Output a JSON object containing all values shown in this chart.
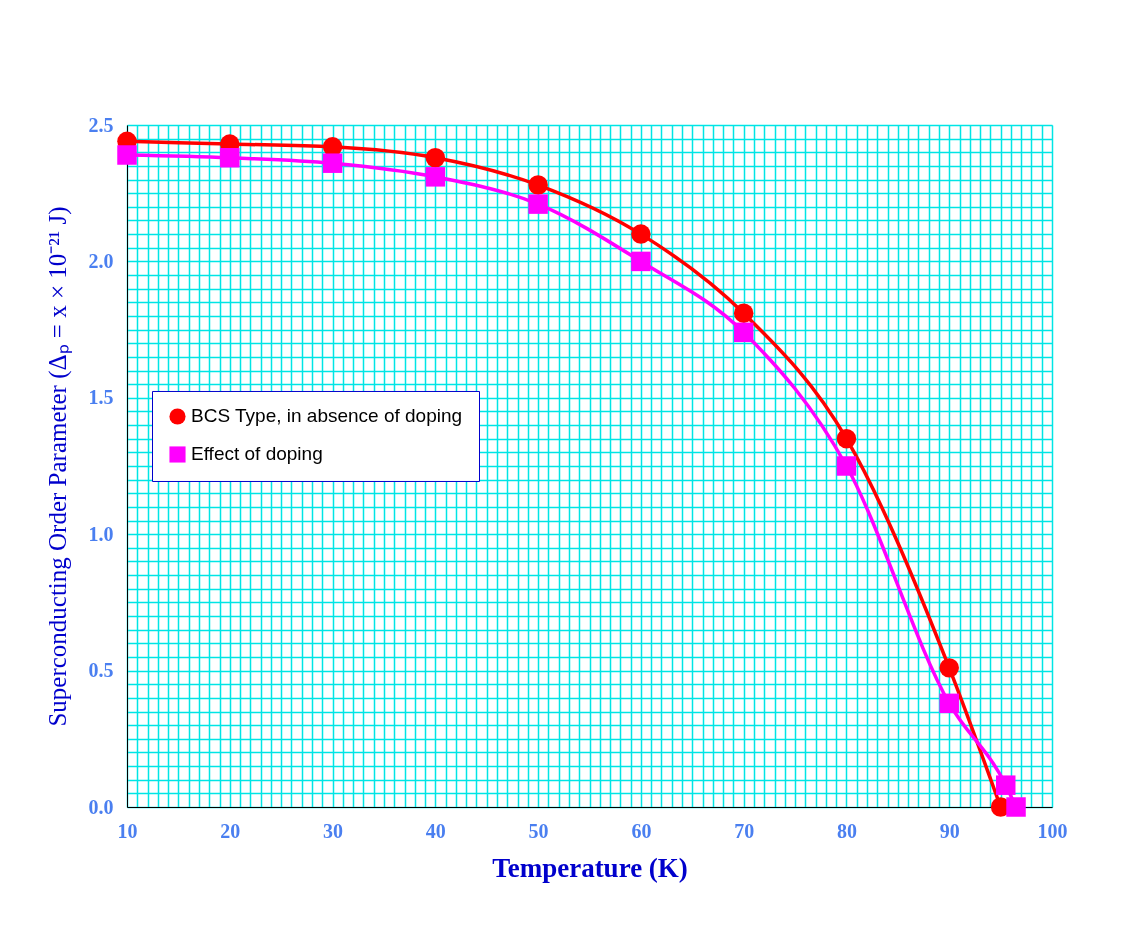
{
  "chart_data": {
    "type": "line",
    "xlabel": "Temperature (K)",
    "ylabel": "Superconducting Order Parameter (Δₚ = x × 10⁻²¹ J)",
    "xlim": [
      10,
      100
    ],
    "xticks": [
      10,
      20,
      30,
      40,
      50,
      60,
      70,
      80,
      90,
      100
    ],
    "ylim": [
      0,
      2.5
    ],
    "yticks": [
      {
        "value": 0,
        "label": "0.0"
      },
      0.5,
      {
        "value": 1,
        "label": "1.0"
      },
      1.5,
      {
        "value": 2,
        "label": "2.0"
      },
      2.5
    ],
    "grid": true,
    "legend": "left",
    "line_style": "solid",
    "series": [
      {
        "name": "BCS Type, in absence of doping",
        "color": "#ff0000",
        "marker": "circle",
        "x": [
          10,
          20,
          30,
          40,
          50,
          60,
          70,
          80,
          90,
          95
        ],
        "values": [
          2.44,
          2.43,
          2.42,
          2.38,
          2.28,
          2.1,
          1.81,
          1.35,
          0.51,
          0
        ]
      },
      {
        "name": "Effect of doping",
        "color": "#ff00ff",
        "marker": "square",
        "x": [
          10,
          20,
          30,
          40,
          50,
          60,
          70,
          80,
          90,
          95.5,
          96.5
        ],
        "values": [
          2.39,
          2.38,
          2.36,
          2.31,
          2.21,
          2.0,
          1.74,
          1.25,
          0.38,
          0.08,
          0
        ]
      }
    ]
  }
}
